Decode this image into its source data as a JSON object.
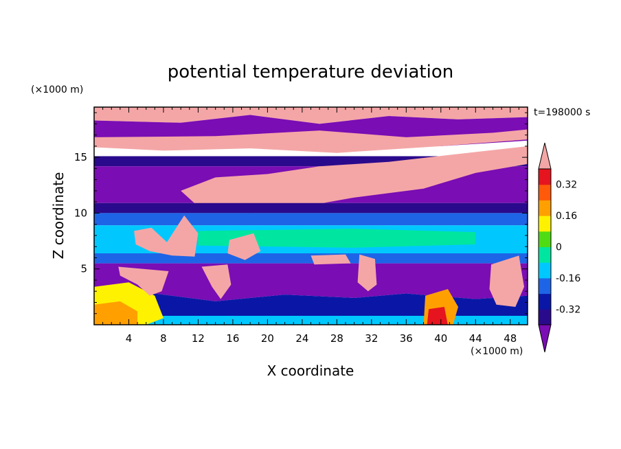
{
  "chart_data": {
    "type": "heatmap",
    "title": "potential temperature deviation",
    "xlabel": "X coordinate",
    "ylabel": "Z coordinate",
    "x_unit": "(×1000 m)",
    "y_unit": "(×1000 m)",
    "time_label": "t=198000 s",
    "xlim": [
      0,
      50
    ],
    "ylim": [
      0,
      19.5
    ],
    "x_ticks": [
      4,
      8,
      12,
      16,
      20,
      24,
      28,
      32,
      36,
      40,
      44,
      48
    ],
    "y_ticks": [
      5,
      10,
      15
    ],
    "colorbar": {
      "levels": [
        -0.4,
        -0.32,
        -0.24,
        -0.16,
        -0.08,
        0,
        0.08,
        0.16,
        0.24,
        0.32,
        0.4
      ],
      "labels": [
        "0.32",
        "0.16",
        "0",
        "-0.16",
        "-0.32"
      ],
      "label_values": [
        0.32,
        0.16,
        0,
        -0.16,
        -0.32
      ],
      "colors_low_to_high": [
        "#2a0a8c",
        "#0a17a6",
        "#1e64e6",
        "#00c8ff",
        "#00e6a0",
        "#4fdc14",
        "#fff200",
        "#ffa000",
        "#ff5a0a",
        "#e6141e"
      ],
      "under_color": "#7a0db4",
      "over_color": "#f4a6a6",
      "extend": "both"
    },
    "field_regions": [
      {
        "label": "upper pink cap",
        "value": 0.5,
        "polygon": [
          [
            0,
            19.5
          ],
          [
            50,
            19.5
          ],
          [
            50,
            18.6
          ],
          [
            42,
            18.4
          ],
          [
            34,
            18.7
          ],
          [
            26,
            18.0
          ],
          [
            18,
            18.8
          ],
          [
            10,
            18.1
          ],
          [
            0,
            18.3
          ]
        ]
      },
      {
        "label": "upper purple band",
        "value": -0.5,
        "polygon": [
          [
            0,
            18.3
          ],
          [
            10,
            18.1
          ],
          [
            18,
            18.8
          ],
          [
            26,
            18.0
          ],
          [
            34,
            18.7
          ],
          [
            42,
            18.4
          ],
          [
            50,
            18.6
          ],
          [
            50,
            16.5
          ],
          [
            40,
            16.0
          ],
          [
            30,
            16.5
          ],
          [
            20,
            16.2
          ],
          [
            10,
            16.6
          ],
          [
            0,
            16.8
          ]
        ]
      },
      {
        "label": "pink band near 17 km",
        "value": 0.5,
        "polygon": [
          [
            0,
            16.8
          ],
          [
            14,
            16.9
          ],
          [
            26,
            17.4
          ],
          [
            36,
            16.8
          ],
          [
            46,
            17.2
          ],
          [
            50,
            17.5
          ],
          [
            50,
            16.6
          ],
          [
            40,
            16.0
          ],
          [
            28,
            15.4
          ],
          [
            18,
            15.8
          ],
          [
            8,
            15.6
          ],
          [
            0,
            15.9
          ]
        ]
      },
      {
        "label": "deep blue band near 14.8 km",
        "value": -0.36,
        "polygon": [
          [
            0,
            15.1
          ],
          [
            50,
            15.1
          ],
          [
            50,
            14.2
          ],
          [
            0,
            14.2
          ]
        ]
      },
      {
        "label": "purple layer 11-14 km",
        "value": -0.5,
        "polygon": [
          [
            0,
            14.2
          ],
          [
            50,
            14.2
          ],
          [
            50,
            10.9
          ],
          [
            0,
            10.9
          ]
        ]
      },
      {
        "label": "rising pink plume",
        "value": 0.5,
        "polygon": [
          [
            14,
            13.2
          ],
          [
            20,
            13.5
          ],
          [
            26,
            14.2
          ],
          [
            34,
            14.6
          ],
          [
            42,
            15.3
          ],
          [
            50,
            16.0
          ],
          [
            50,
            14.4
          ],
          [
            44,
            13.6
          ],
          [
            38,
            12.2
          ],
          [
            30,
            11.4
          ],
          [
            22,
            10.3
          ],
          [
            18,
            10.0
          ],
          [
            12,
            10.6
          ],
          [
            10,
            12.0
          ]
        ]
      },
      {
        "label": "dark blue layer near 10.5 km",
        "value": -0.36,
        "polygon": [
          [
            0,
            10.9
          ],
          [
            50,
            10.9
          ],
          [
            50,
            10.0
          ],
          [
            0,
            10.0
          ]
        ]
      },
      {
        "label": "blue layer 9-10 km",
        "value": -0.22,
        "polygon": [
          [
            0,
            10.0
          ],
          [
            50,
            10.0
          ],
          [
            50,
            8.9
          ],
          [
            0,
            8.9
          ]
        ]
      },
      {
        "label": "cyan layer 6.5-9 km",
        "value": -0.12,
        "polygon": [
          [
            0,
            8.9
          ],
          [
            50,
            8.9
          ],
          [
            50,
            6.4
          ],
          [
            0,
            6.4
          ]
        ]
      },
      {
        "label": "green core 7-8.5 km",
        "value": -0.04,
        "polygon": [
          [
            12,
            8.4
          ],
          [
            30,
            8.6
          ],
          [
            44,
            8.3
          ],
          [
            44,
            7.2
          ],
          [
            30,
            6.9
          ],
          [
            12,
            7.1
          ]
        ]
      },
      {
        "label": "blue layer 5.5-6.5 km",
        "value": -0.22,
        "polygon": [
          [
            0,
            6.4
          ],
          [
            50,
            6.4
          ],
          [
            50,
            5.5
          ],
          [
            0,
            5.5
          ]
        ]
      },
      {
        "label": "lower purple layer",
        "value": -0.5,
        "polygon": [
          [
            0,
            5.5
          ],
          [
            50,
            5.5
          ],
          [
            50,
            2.6
          ],
          [
            44,
            2.3
          ],
          [
            36,
            2.8
          ],
          [
            30,
            2.4
          ],
          [
            22,
            2.7
          ],
          [
            14,
            2.1
          ],
          [
            6,
            2.9
          ],
          [
            0,
            2.4
          ]
        ]
      },
      {
        "label": "near-surface blue",
        "value": -0.3,
        "polygon": [
          [
            0,
            2.4
          ],
          [
            6,
            2.9
          ],
          [
            14,
            2.1
          ],
          [
            22,
            2.7
          ],
          [
            30,
            2.4
          ],
          [
            36,
            2.8
          ],
          [
            44,
            2.3
          ],
          [
            50,
            2.6
          ],
          [
            50,
            0.8
          ],
          [
            0,
            0.8
          ]
        ]
      },
      {
        "label": "near-surface cyan",
        "value": -0.12,
        "polygon": [
          [
            0,
            0.8
          ],
          [
            50,
            0.8
          ],
          [
            50,
            0
          ],
          [
            0,
            0
          ]
        ]
      },
      {
        "label": "surface warm patch west",
        "value": 0.1,
        "polygon": [
          [
            0,
            3.4
          ],
          [
            4,
            3.8
          ],
          [
            7,
            2.6
          ],
          [
            8,
            0.6
          ],
          [
            6,
            0
          ],
          [
            0,
            0
          ]
        ]
      },
      {
        "label": "surface hot spot west",
        "value": 0.22,
        "polygon": [
          [
            0,
            1.8
          ],
          [
            3,
            2.1
          ],
          [
            5,
            1.2
          ],
          [
            5,
            0
          ],
          [
            0,
            0
          ]
        ]
      },
      {
        "label": "surface warm patch east",
        "value": 0.2,
        "polygon": [
          [
            38.2,
            2.6
          ],
          [
            40.8,
            3.2
          ],
          [
            42,
            1.6
          ],
          [
            41.4,
            0
          ],
          [
            38,
            0
          ]
        ]
      },
      {
        "label": "surface hot spot east",
        "value": 0.36,
        "polygon": [
          [
            38.6,
            1.4
          ],
          [
            40.4,
            1.6
          ],
          [
            40.8,
            0
          ],
          [
            38.4,
            0
          ]
        ]
      },
      {
        "label": "pink blob near x=7",
        "value": 0.5,
        "polygon": [
          [
            2.8,
            5.2
          ],
          [
            8.6,
            4.8
          ],
          [
            7.8,
            3.0
          ],
          [
            6.4,
            2.6
          ],
          [
            5.0,
            3.6
          ],
          [
            3.0,
            4.4
          ]
        ]
      },
      {
        "label": "pink blob near x=14",
        "value": 0.5,
        "polygon": [
          [
            12.4,
            5.2
          ],
          [
            15.4,
            5.4
          ],
          [
            15.8,
            3.6
          ],
          [
            14.6,
            2.3
          ],
          [
            13.6,
            3.4
          ]
        ]
      },
      {
        "label": "pink blob near x=31",
        "value": 0.5,
        "polygon": [
          [
            30.6,
            6.3
          ],
          [
            32.4,
            5.9
          ],
          [
            32.6,
            3.6
          ],
          [
            31.6,
            3.0
          ],
          [
            30.4,
            3.8
          ]
        ]
      },
      {
        "label": "pink blob near x=47",
        "value": 0.5,
        "polygon": [
          [
            45.8,
            5.4
          ],
          [
            49.0,
            6.2
          ],
          [
            49.6,
            3.4
          ],
          [
            48.6,
            1.6
          ],
          [
            46.4,
            1.8
          ],
          [
            45.6,
            3.2
          ]
        ]
      },
      {
        "label": "pink blob near x=27",
        "value": 0.5,
        "polygon": [
          [
            25,
            6.2
          ],
          [
            29,
            6.3
          ],
          [
            29.6,
            5.5
          ],
          [
            25.4,
            5.4
          ]
        ]
      },
      {
        "label": "pink blobs mid-level west",
        "value": 0.5,
        "polygon": [
          [
            4.6,
            8.4
          ],
          [
            6.6,
            8.7
          ],
          [
            8.4,
            7.4
          ],
          [
            10.4,
            9.8
          ],
          [
            12.0,
            8.2
          ],
          [
            11.6,
            6.1
          ],
          [
            9.0,
            6.2
          ],
          [
            6.4,
            6.6
          ],
          [
            4.8,
            7.2
          ]
        ]
      },
      {
        "label": "pink blob mid-level center",
        "value": 0.5,
        "polygon": [
          [
            15.6,
            7.6
          ],
          [
            18.4,
            8.2
          ],
          [
            19.2,
            6.6
          ],
          [
            17.4,
            5.8
          ],
          [
            15.4,
            6.4
          ]
        ]
      }
    ]
  }
}
